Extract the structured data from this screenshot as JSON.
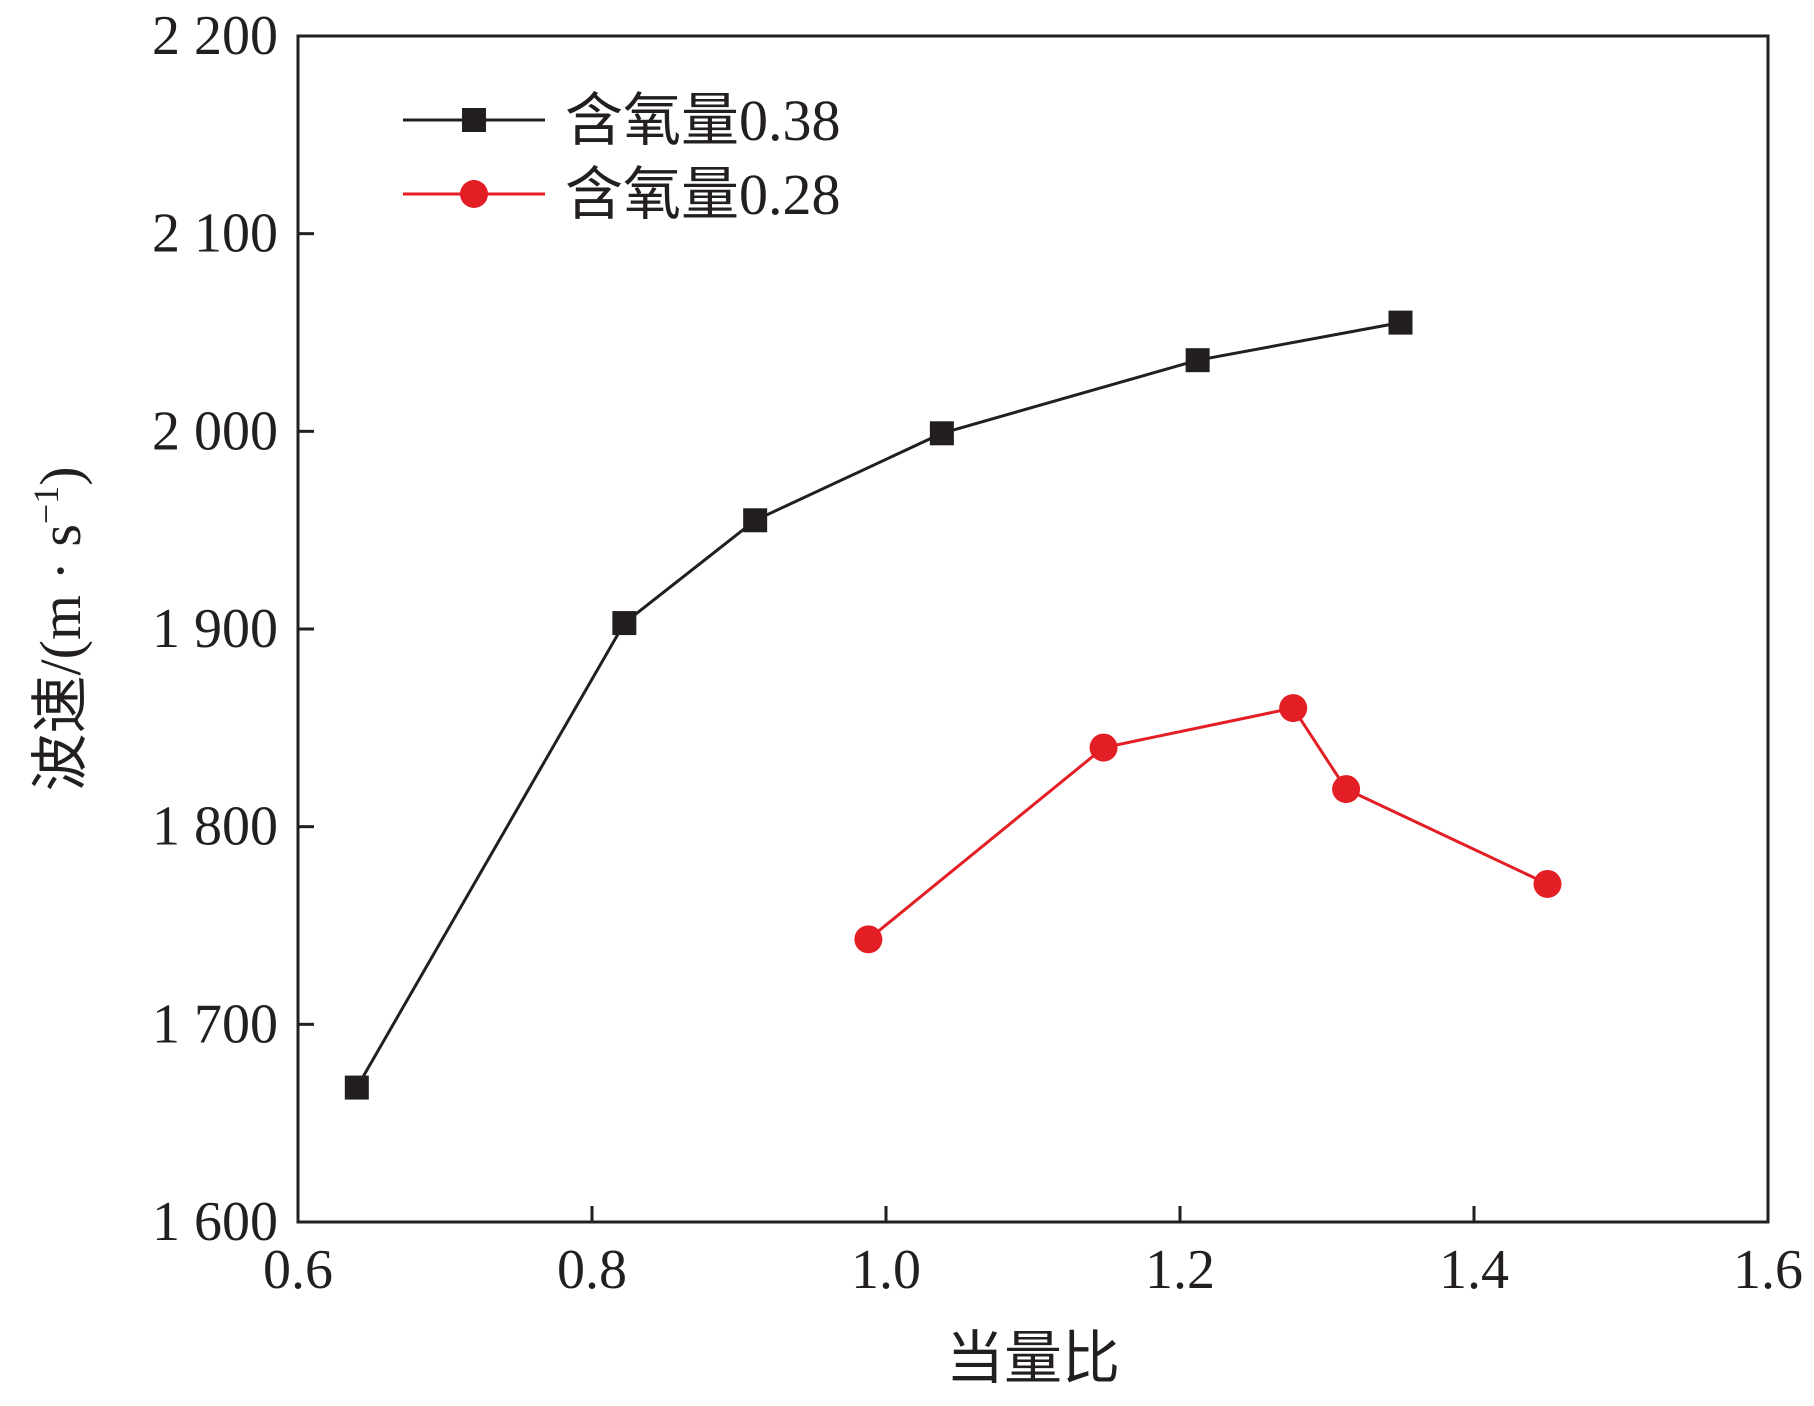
{
  "chart_data": {
    "type": "line",
    "xlabel": "当量比",
    "ylabel": "波速/(m · s",
    "ylabel_sup": "−1",
    "ylabel_close": ")",
    "xlim": [
      0.6,
      1.6
    ],
    "ylim": [
      1600,
      2200
    ],
    "x_ticks": [
      "0.6",
      "0.8",
      "1.0",
      "1.2",
      "1.4",
      "1.6"
    ],
    "y_ticks": [
      "1 600",
      "1 700",
      "1 800",
      "1 900",
      "2 000",
      "2 100",
      "2 200"
    ],
    "grid": false,
    "legend_position": "top-left",
    "series": [
      {
        "name": "含氧量0.38",
        "color": "#231f20",
        "marker": "square",
        "x": [
          0.64,
          0.822,
          0.911,
          1.038,
          1.212,
          1.35
        ],
        "y": [
          1668,
          1903,
          1955,
          1999,
          2036,
          2055
        ]
      },
      {
        "name": "含氧量0.28",
        "color": "#e31e24",
        "marker": "circle",
        "x": [
          0.988,
          1.148,
          1.277,
          1.313,
          1.45
        ],
        "y": [
          1743,
          1840,
          1860,
          1819,
          1771
        ]
      }
    ]
  }
}
